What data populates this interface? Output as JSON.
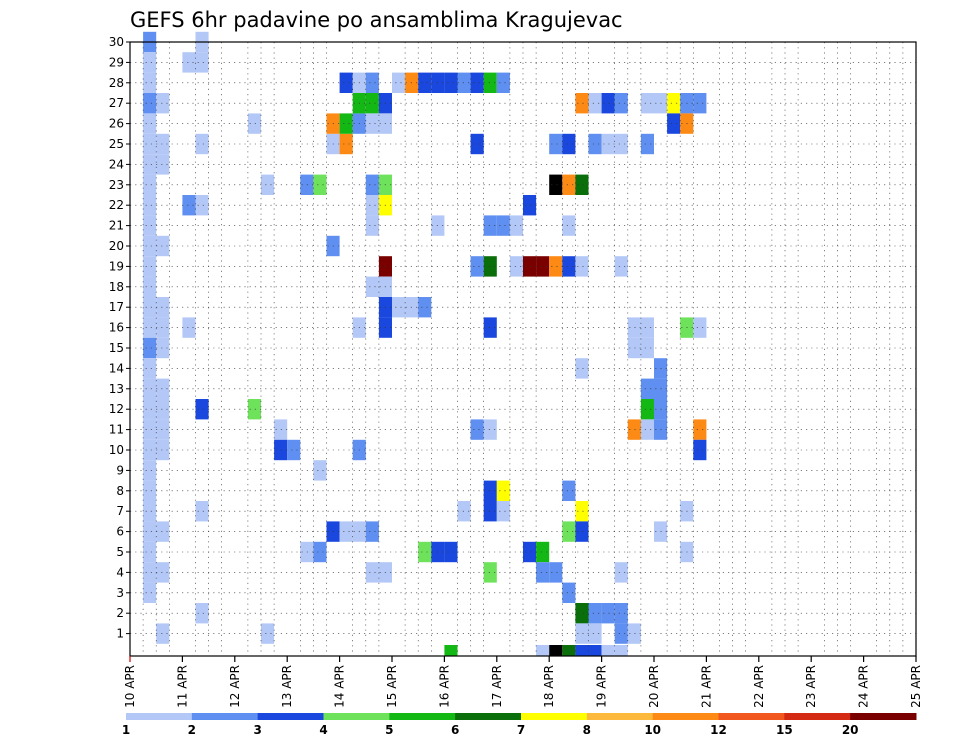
{
  "chart_data": {
    "type": "heatmap",
    "title": "GEFS 6hr padavine po ansamblima Kragujevac",
    "xlabel": "",
    "ylabel": "",
    "grid": true,
    "x_tick_labels": [
      "10 APR",
      "11 APR",
      "12 APR",
      "13 APR",
      "14 APR",
      "15 APR",
      "16 APR",
      "17 APR",
      "18 APR",
      "19 APR",
      "20 APR",
      "21 APR",
      "22 APR",
      "23 APR",
      "24 APR",
      "25 APR"
    ],
    "y_tick_labels": [
      "1",
      "2",
      "3",
      "4",
      "5",
      "6",
      "7",
      "8",
      "9",
      "10",
      "11",
      "12",
      "13",
      "14",
      "15",
      "16",
      "17",
      "18",
      "19",
      "20",
      "21",
      "22",
      "23",
      "24",
      "25",
      "26",
      "27",
      "28",
      "29",
      "30"
    ],
    "x_range_steps": [
      0,
      60
    ],
    "y_range_members": [
      0,
      30
    ],
    "colorbar": {
      "levels": [
        "1",
        "2",
        "3",
        "4",
        "5",
        "6",
        "7",
        "8",
        "10",
        "12",
        "15",
        "20"
      ],
      "colors": [
        "#b3c8f7",
        "#5f8ff0",
        "#1a48de",
        "#6de25a",
        "#14b814",
        "#0a6e0a",
        "#ffff00",
        "#fdb93c",
        "#fd8a14",
        "#f2581e",
        "#d42a14",
        "#7a0000"
      ]
    },
    "cells": [
      [
        1,
        30,
        2
      ],
      [
        1,
        29,
        1
      ],
      [
        1,
        28,
        1
      ],
      [
        1,
        27,
        2
      ],
      [
        1,
        26,
        1
      ],
      [
        1,
        25,
        1
      ],
      [
        1,
        24,
        1
      ],
      [
        1,
        23,
        1
      ],
      [
        1,
        22,
        1
      ],
      [
        1,
        21,
        1
      ],
      [
        1,
        20,
        1
      ],
      [
        1,
        19,
        1
      ],
      [
        1,
        18,
        1
      ],
      [
        1,
        17,
        1
      ],
      [
        1,
        16,
        1
      ],
      [
        1,
        15,
        2
      ],
      [
        1,
        14,
        1
      ],
      [
        1,
        13,
        1
      ],
      [
        1,
        12,
        1
      ],
      [
        1,
        11,
        1
      ],
      [
        1,
        10,
        1
      ],
      [
        1,
        9,
        1
      ],
      [
        1,
        8,
        1
      ],
      [
        1,
        7,
        1
      ],
      [
        1,
        6,
        1
      ],
      [
        1,
        5,
        1
      ],
      [
        1,
        4,
        1
      ],
      [
        1,
        3,
        1
      ],
      [
        2,
        27,
        1
      ],
      [
        2,
        25,
        1
      ],
      [
        2,
        24,
        1
      ],
      [
        2,
        20,
        1
      ],
      [
        2,
        17,
        1
      ],
      [
        2,
        16,
        1
      ],
      [
        2,
        15,
        1
      ],
      [
        2,
        13,
        1
      ],
      [
        2,
        12,
        1
      ],
      [
        2,
        11,
        1
      ],
      [
        2,
        10,
        1
      ],
      [
        2,
        6,
        1
      ],
      [
        2,
        4,
        1
      ],
      [
        2,
        1,
        1
      ],
      [
        4,
        29,
        1
      ],
      [
        4,
        22,
        2
      ],
      [
        4,
        16,
        1
      ],
      [
        5,
        30,
        1
      ],
      [
        5,
        29,
        1
      ],
      [
        5,
        25,
        1
      ],
      [
        5,
        22,
        1
      ],
      [
        5,
        12,
        3
      ],
      [
        5,
        7,
        1
      ],
      [
        5,
        2,
        1
      ],
      [
        9,
        12,
        4
      ],
      [
        9,
        26,
        1
      ],
      [
        10,
        23,
        1
      ],
      [
        10,
        1,
        1
      ],
      [
        11,
        11,
        1
      ],
      [
        11,
        10,
        3
      ],
      [
        12,
        10,
        2
      ],
      [
        14,
        9,
        1
      ],
      [
        13,
        23,
        2
      ],
      [
        14,
        23,
        4
      ],
      [
        13,
        5,
        1
      ],
      [
        14,
        5,
        2
      ],
      [
        15,
        6,
        3
      ],
      [
        15,
        25,
        1
      ],
      [
        15,
        20,
        2
      ],
      [
        15,
        26,
        9
      ],
      [
        16,
        25,
        9
      ],
      [
        16,
        26,
        5
      ],
      [
        16,
        28,
        3
      ],
      [
        16,
        6,
        1
      ],
      [
        17,
        28,
        1
      ],
      [
        17,
        26,
        2
      ],
      [
        17,
        16,
        1
      ],
      [
        17,
        10,
        2
      ],
      [
        17,
        6,
        1
      ],
      [
        17,
        27,
        5
      ],
      [
        18,
        27,
        5
      ],
      [
        18,
        28,
        2
      ],
      [
        18,
        26,
        1
      ],
      [
        18,
        23,
        2
      ],
      [
        18,
        22,
        1
      ],
      [
        18,
        21,
        1
      ],
      [
        18,
        18,
        1
      ],
      [
        18,
        6,
        2
      ],
      [
        18,
        4,
        1
      ],
      [
        19,
        27,
        3
      ],
      [
        19,
        26,
        1
      ],
      [
        19,
        23,
        4
      ],
      [
        19,
        22,
        7
      ],
      [
        19,
        19,
        12
      ],
      [
        19,
        18,
        1
      ],
      [
        19,
        17,
        3
      ],
      [
        19,
        16,
        3
      ],
      [
        19,
        4,
        1
      ],
      [
        20,
        28,
        1
      ],
      [
        20,
        17,
        1
      ],
      [
        21,
        28,
        9
      ],
      [
        21,
        17,
        1
      ],
      [
        22,
        28,
        3
      ],
      [
        22,
        17,
        2
      ],
      [
        22,
        5,
        4
      ],
      [
        23,
        5,
        3
      ],
      [
        24,
        5,
        3
      ],
      [
        23,
        28,
        3
      ],
      [
        24,
        28,
        3
      ],
      [
        24,
        0,
        5
      ],
      [
        23,
        21,
        1
      ],
      [
        25,
        28,
        2
      ],
      [
        26,
        28,
        3
      ],
      [
        25,
        7,
        1
      ],
      [
        26,
        25,
        3
      ],
      [
        26,
        11,
        2
      ],
      [
        26,
        19,
        2
      ],
      [
        27,
        28,
        5
      ],
      [
        27,
        19,
        6
      ],
      [
        27,
        11,
        1
      ],
      [
        27,
        21,
        2
      ],
      [
        27,
        16,
        3
      ],
      [
        27,
        8,
        3
      ],
      [
        27,
        7,
        3
      ],
      [
        27,
        4,
        4
      ],
      [
        28,
        28,
        2
      ],
      [
        28,
        21,
        2
      ],
      [
        28,
        8,
        7
      ],
      [
        28,
        7,
        1
      ],
      [
        29,
        21,
        1
      ],
      [
        29,
        19,
        1
      ],
      [
        30,
        22,
        3
      ],
      [
        30,
        19,
        12
      ],
      [
        30,
        5,
        3
      ],
      [
        31,
        19,
        12
      ],
      [
        31,
        5,
        5
      ],
      [
        31,
        4,
        2
      ],
      [
        31,
        0,
        1
      ],
      [
        32,
        19,
        9
      ],
      [
        32,
        25,
        2
      ],
      [
        32,
        23,
        15
      ],
      [
        32,
        4,
        2
      ],
      [
        32,
        0,
        15
      ],
      [
        33,
        25,
        3
      ],
      [
        33,
        23,
        9
      ],
      [
        33,
        19,
        3
      ],
      [
        33,
        8,
        2
      ],
      [
        33,
        6,
        4
      ],
      [
        33,
        3,
        2
      ],
      [
        33,
        0,
        6
      ],
      [
        33,
        21,
        1
      ],
      [
        34,
        27,
        9
      ],
      [
        34,
        23,
        6
      ],
      [
        34,
        19,
        1
      ],
      [
        34,
        14,
        1
      ],
      [
        34,
        7,
        7
      ],
      [
        34,
        6,
        3
      ],
      [
        34,
        2,
        6
      ],
      [
        34,
        1,
        1
      ],
      [
        34,
        0,
        3
      ],
      [
        35,
        27,
        1
      ],
      [
        35,
        25,
        2
      ],
      [
        35,
        2,
        2
      ],
      [
        35,
        0,
        3
      ],
      [
        35,
        1,
        1
      ],
      [
        36,
        27,
        3
      ],
      [
        36,
        25,
        1
      ],
      [
        36,
        2,
        2
      ],
      [
        36,
        0,
        1
      ],
      [
        37,
        27,
        2
      ],
      [
        37,
        25,
        1
      ],
      [
        37,
        19,
        1
      ],
      [
        37,
        1,
        2
      ],
      [
        37,
        4,
        1
      ],
      [
        37,
        2,
        2
      ],
      [
        37,
        0,
        1
      ],
      [
        38,
        16,
        1
      ],
      [
        38,
        15,
        1
      ],
      [
        38,
        11,
        9
      ],
      [
        38,
        1,
        1
      ],
      [
        39,
        16,
        1
      ],
      [
        39,
        15,
        1
      ],
      [
        39,
        13,
        2
      ],
      [
        39,
        12,
        5
      ],
      [
        39,
        11,
        1
      ],
      [
        39,
        27,
        1
      ],
      [
        39,
        25,
        2
      ],
      [
        40,
        14,
        2
      ],
      [
        40,
        13,
        2
      ],
      [
        40,
        12,
        2
      ],
      [
        40,
        11,
        2
      ],
      [
        40,
        6,
        1
      ],
      [
        40,
        27,
        1
      ],
      [
        41,
        27,
        7
      ],
      [
        41,
        26,
        3
      ],
      [
        42,
        27,
        2
      ],
      [
        42,
        26,
        9
      ],
      [
        42,
        16,
        4
      ],
      [
        42,
        7,
        1
      ],
      [
        42,
        5,
        1
      ],
      [
        43,
        27,
        2
      ],
      [
        43,
        16,
        1
      ],
      [
        43,
        11,
        9
      ],
      [
        43,
        10,
        3
      ]
    ],
    "cells_format": "[time_step (6h steps from 10 APR 00Z), ensemble member (0 = control row), color level index 1-12]"
  }
}
